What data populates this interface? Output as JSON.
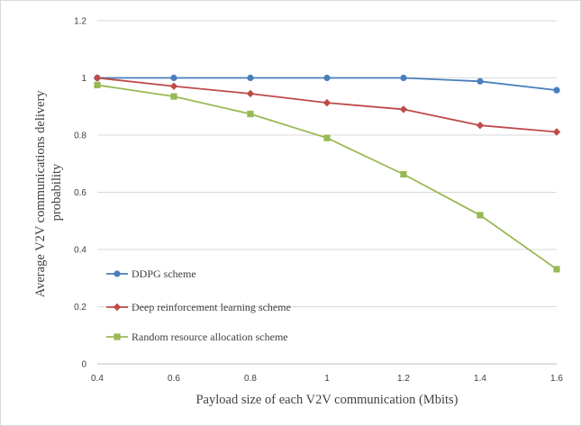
{
  "chart_data": {
    "type": "line",
    "title": "",
    "xlabel": "Payload size of each V2V communication (Mbits)",
    "ylabel_lines": [
      "Average V2V communications delivery",
      "probability"
    ],
    "x": [
      0.4,
      0.6,
      0.8,
      1,
      1.2,
      1.4,
      1.6
    ],
    "x_tick_labels": [
      "0.4",
      "0.6",
      "0.8",
      "1",
      "1.2",
      "1.4",
      "1.6"
    ],
    "y_ticks": [
      0,
      0.2,
      0.4,
      0.6,
      0.8,
      1,
      1.2
    ],
    "y_tick_labels": [
      "0",
      "0.2",
      "0.4",
      "0.6",
      "0.8",
      "1",
      "1.2"
    ],
    "xlim": [
      0.4,
      1.6
    ],
    "ylim": [
      0,
      1.2
    ],
    "grid": "horizontal",
    "legend_placement": "bottom-left",
    "series": [
      {
        "name": "DDPG scheme",
        "color": "#4a7ebb",
        "marker": "circle",
        "values": [
          1.0,
          1.0,
          1.0,
          1.0,
          1.0,
          0.988,
          0.957
        ]
      },
      {
        "name": "Deep reinforcement learning scheme",
        "color": "#be4b48",
        "marker": "diamond",
        "values": [
          1.0,
          0.971,
          0.945,
          0.913,
          0.89,
          0.834,
          0.811
        ]
      },
      {
        "name": "Random resource allocation scheme",
        "color": "#98b954",
        "marker": "square",
        "values": [
          0.975,
          0.935,
          0.874,
          0.79,
          0.663,
          0.52,
          0.331
        ]
      }
    ]
  }
}
